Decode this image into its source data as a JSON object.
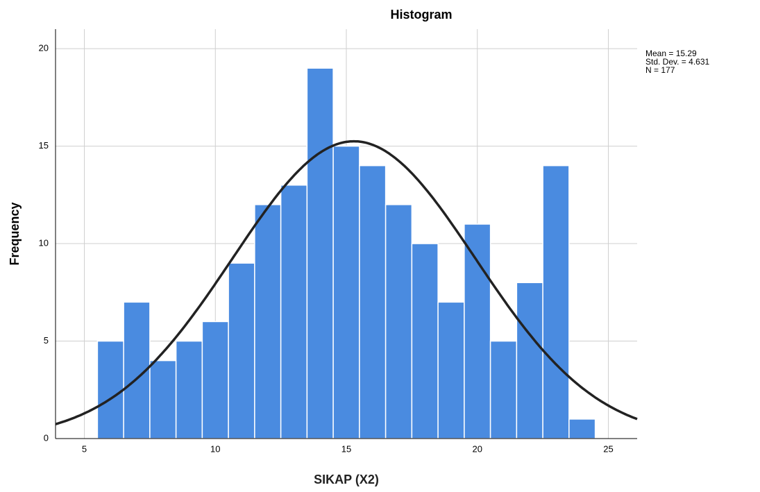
{
  "chart_data": {
    "type": "histogram",
    "title": "Histogram",
    "x_label": "SIKAP (X2)",
    "y_label": "Frequency",
    "bins": [
      5.5,
      6.5,
      7.5,
      8.5,
      9.5,
      10.5,
      11.5,
      12.5,
      13.5,
      14.5,
      15.5,
      16.5,
      17.5,
      18.5,
      19.5,
      20.5,
      21.5,
      22.5,
      23.5,
      24.5
    ],
    "values": [
      5,
      7,
      4,
      5,
      6,
      9,
      12,
      13,
      19,
      15,
      14,
      12,
      10,
      7,
      11,
      5,
      8,
      14,
      1
    ],
    "color": "#4a8be0",
    "xlim": [
      3.9,
      26.1
    ],
    "xticks": [
      5,
      10,
      15,
      20,
      25
    ],
    "ylim": [
      0,
      21
    ],
    "yticks": [
      0,
      5,
      10,
      15,
      20
    ],
    "grid": true,
    "stats": [
      {
        "value": 15.29,
        "label": "Mean = 15.29"
      },
      {
        "value": 4.631,
        "label": "Std. Dev. = 4.631"
      },
      {
        "value": 177,
        "label": "N = 177"
      }
    ]
  }
}
